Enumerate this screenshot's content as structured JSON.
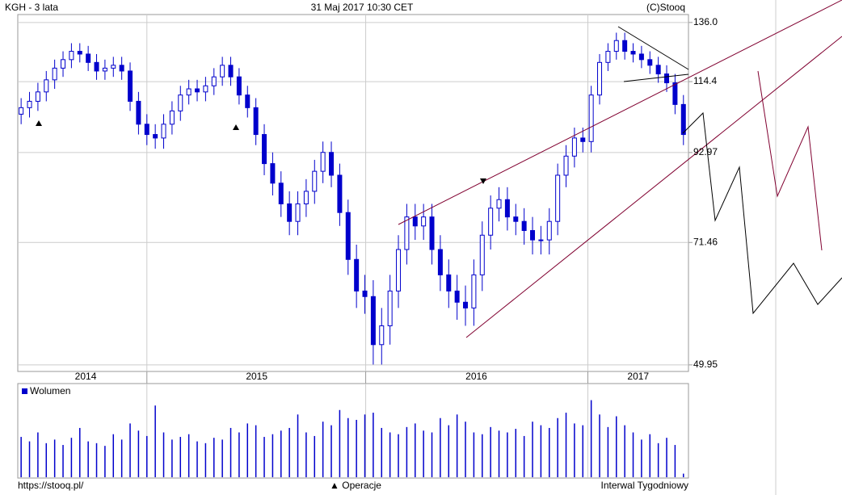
{
  "chart_data": {
    "type": "candlestick",
    "title": "KGH - 3 lata",
    "date_label": "31 Maj 2017 10:30 CET",
    "copyright": "(C)Stooq",
    "volume_label": "Wolumen",
    "footer_left": "https://stooq.pl/",
    "footer_center": "▲ Operacje",
    "footer_right": "Interwal Tygodniowy",
    "color": "#0000cc",
    "log_scale": true,
    "grid": true,
    "ylim": [
      49,
      139.2
    ],
    "yticks": [
      {
        "value": 136,
        "label": "136.0"
      },
      114.4,
      92.97,
      71.46,
      49.95
    ],
    "xlim": [
      -0.4,
      79.6
    ],
    "xticks": [
      {
        "value": 7.7,
        "label": "2014"
      },
      {
        "value": 28.1,
        "label": "2015"
      },
      {
        "value": 54.3,
        "label": "2016"
      },
      {
        "value": 73.6,
        "label": "2017"
      }
    ],
    "xgrid": [
      15,
      41.1,
      67.6
    ],
    "vlim": [
      0,
      100
    ],
    "open": [
      104,
      106,
      108,
      111,
      115,
      119,
      122,
      125,
      124,
      121,
      118,
      119,
      120,
      118,
      108,
      101,
      98,
      97,
      101,
      105,
      110,
      112,
      111,
      113,
      116,
      120,
      116,
      110,
      106,
      98,
      90,
      85,
      80,
      76,
      80,
      83,
      88,
      93,
      87,
      78,
      68,
      62,
      61,
      53,
      56,
      62,
      70,
      77,
      75,
      77,
      70,
      65,
      62,
      60,
      59,
      65,
      73,
      79,
      81,
      77,
      76,
      74,
      72,
      72,
      76,
      87,
      92,
      97,
      96,
      110,
      121,
      125,
      129,
      125,
      124,
      122,
      120,
      117,
      114,
      107
    ],
    "high": [
      109,
      111,
      114,
      118,
      122,
      125,
      128,
      128,
      127,
      124,
      122,
      123,
      123,
      121,
      111,
      104,
      101,
      104,
      108,
      113,
      115,
      115,
      116,
      119,
      123,
      123,
      119,
      113,
      109,
      101,
      93,
      88,
      83,
      83,
      86,
      91,
      96,
      96,
      90,
      81,
      71,
      65,
      64,
      59,
      65,
      73,
      80,
      80,
      80,
      80,
      73,
      68,
      65,
      63,
      68,
      76,
      82,
      84,
      84,
      80,
      79,
      77,
      75,
      79,
      90,
      95,
      100,
      100,
      113,
      124,
      128,
      132,
      132,
      128,
      127,
      125,
      123,
      120,
      117,
      110
    ],
    "low": [
      101,
      103,
      105,
      108,
      112,
      116,
      119,
      121,
      118,
      115,
      115,
      116,
      115,
      105,
      98,
      95,
      94,
      94,
      98,
      102,
      107,
      108,
      108,
      110,
      113,
      113,
      107,
      103,
      95,
      87,
      82,
      77,
      73,
      73,
      77,
      80,
      85,
      84,
      75,
      65,
      59,
      58,
      50,
      50,
      53,
      59,
      67,
      72,
      72,
      67,
      62,
      59,
      57,
      56,
      56,
      62,
      70,
      76,
      74,
      73,
      71,
      69,
      69,
      69,
      73,
      84,
      89,
      93,
      93,
      107,
      118,
      122,
      122,
      121,
      119,
      117,
      114,
      111,
      104,
      95
    ],
    "close": [
      106,
      108,
      111,
      115,
      119,
      122,
      125,
      124,
      121,
      118,
      119,
      120,
      118,
      108,
      101,
      98,
      97,
      101,
      105,
      110,
      112,
      111,
      113,
      116,
      120,
      116,
      110,
      106,
      98,
      90,
      85,
      80,
      76,
      80,
      83,
      88,
      93,
      87,
      78,
      68,
      62,
      61,
      53,
      56,
      62,
      70,
      77,
      75,
      77,
      70,
      65,
      62,
      60,
      59,
      65,
      73,
      79,
      81,
      77,
      76,
      74,
      72,
      72,
      76,
      87,
      92,
      97,
      96,
      110,
      121,
      125,
      129,
      125,
      124,
      122,
      120,
      117,
      114,
      107,
      98
    ],
    "volume": [
      45,
      40,
      50,
      38,
      42,
      36,
      44,
      55,
      40,
      38,
      35,
      48,
      42,
      60,
      52,
      46,
      80,
      50,
      42,
      45,
      48,
      40,
      38,
      44,
      42,
      55,
      50,
      60,
      58,
      45,
      48,
      52,
      55,
      70,
      50,
      46,
      62,
      58,
      75,
      66,
      64,
      70,
      72,
      55,
      50,
      48,
      56,
      60,
      52,
      50,
      66,
      58,
      70,
      62,
      50,
      48,
      56,
      52,
      50,
      54,
      46,
      62,
      58,
      55,
      66,
      72,
      60,
      58,
      86,
      70,
      56,
      68,
      58,
      50,
      42,
      48,
      38,
      44,
      36,
      4
    ]
  }
}
